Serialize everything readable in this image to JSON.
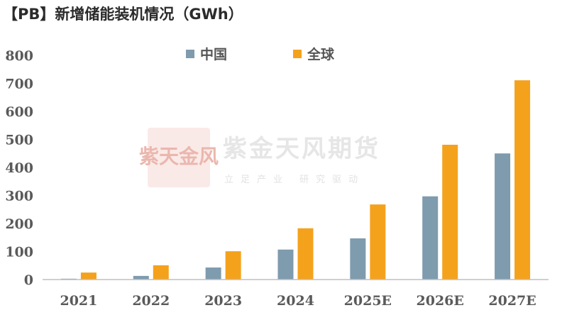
{
  "title": "【PB】新增储能装机情况（GWh）",
  "watermark": {
    "name": "紫金天风期货",
    "slogan": "立足产业 研究驱动",
    "seal_text": "紫天金风",
    "seal_color": "#f0c8c2"
  },
  "chart_data": {
    "type": "bar",
    "categories": [
      "2021",
      "2022",
      "2023",
      "2024",
      "2025E",
      "2026E",
      "2027E"
    ],
    "series": [
      {
        "name": "中国",
        "color": "#7f9bae",
        "values": [
          3,
          13,
          43,
          107,
          147,
          297,
          450
        ]
      },
      {
        "name": "全球",
        "color": "#f4a21c",
        "values": [
          25,
          51,
          101,
          183,
          268,
          481,
          711
        ]
      }
    ],
    "ylim": [
      0,
      800
    ],
    "yticks": [
      "0",
      "100",
      "200",
      "300",
      "400",
      "500",
      "600",
      "700",
      "800"
    ],
    "grid": false,
    "legend_position": "top-center"
  }
}
